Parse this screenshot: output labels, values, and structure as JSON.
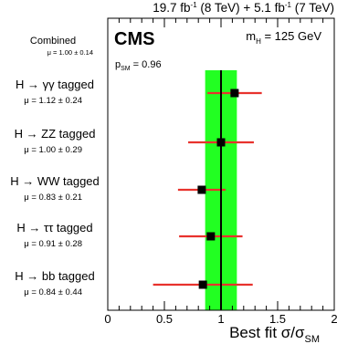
{
  "header": {
    "lumi_8tev_value": "19.7 fb",
    "lumi_8tev_exp": "-1",
    "lumi_8tev_label": " (8 TeV) + ",
    "lumi_7tev_value": "5.1 fb",
    "lumi_7tev_exp": "-1",
    "lumi_7tev_label": " (7 TeV)"
  },
  "experiment_label": "CMS",
  "mass_label": {
    "main": "m",
    "sub": "H",
    "rest": " = 125 GeV"
  },
  "psm_label": {
    "main": "p",
    "sub": "SM",
    "rest": " = 0.96"
  },
  "colors": {
    "band": "#22ff22",
    "error_bar": "#e8322d",
    "marker": "#000000",
    "sm_line": "#000000"
  },
  "chart_data": {
    "type": "scatter",
    "xlabel": "Best fit σ/σ",
    "xlabel_sub": "SM",
    "xlim": [
      0,
      2
    ],
    "xticks": [
      {
        "value": 0,
        "label": "0"
      },
      {
        "value": 0.5,
        "label": "0.5"
      },
      {
        "value": 1,
        "label": "1"
      },
      {
        "value": 1.5,
        "label": "1.5"
      },
      {
        "value": 2,
        "label": "2"
      }
    ],
    "combined": {
      "label": "Combined",
      "mu_text": "μ = 1.00 ± 0.14",
      "value": 1.0,
      "band": [
        0.86,
        1.14
      ]
    },
    "sm_value": 1.0,
    "categories": [
      {
        "label": "H → γγ tagged",
        "mu_text": "μ = 1.12 ± 0.24",
        "value": 1.12,
        "err": 0.24
      },
      {
        "label": "H → ZZ tagged",
        "mu_text": "μ = 1.00 ± 0.29",
        "value": 1.0,
        "err": 0.29
      },
      {
        "label": "H → WW tagged",
        "mu_text": "μ = 0.83 ± 0.21",
        "value": 0.83,
        "err": 0.21
      },
      {
        "label": "H → ττ tagged",
        "mu_text": "μ = 0.91 ± 0.28",
        "value": 0.91,
        "err": 0.28
      },
      {
        "label": "H → bb tagged",
        "mu_text": "μ = 0.84 ± 0.44",
        "value": 0.84,
        "err": 0.44
      }
    ]
  }
}
